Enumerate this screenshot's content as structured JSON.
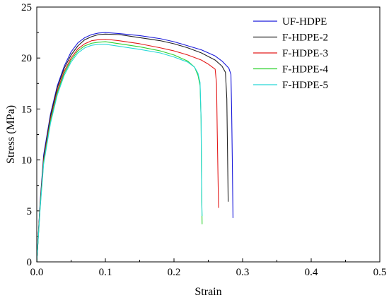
{
  "chart_data": {
    "type": "line",
    "title": "",
    "xlabel": "Strain",
    "ylabel": "Stress (MPa)",
    "xlim": [
      0,
      0.5
    ],
    "ylim": [
      0,
      25
    ],
    "xticks": [
      0.0,
      0.1,
      0.2,
      0.3,
      0.4,
      0.5
    ],
    "xtick_labels": [
      "0.0",
      "0.1",
      "0.2",
      "0.3",
      "0.4",
      "0.5"
    ],
    "yticks": [
      0,
      5,
      10,
      15,
      20,
      25
    ],
    "ytick_labels": [
      "0",
      "5",
      "10",
      "15",
      "20",
      "25"
    ],
    "grid": false,
    "legend_position": "top-right",
    "series": [
      {
        "name": "UF-HDPE",
        "color": "#1a1adb",
        "points": [
          [
            0,
            0
          ],
          [
            0.005,
            6
          ],
          [
            0.01,
            10.5
          ],
          [
            0.02,
            14.5
          ],
          [
            0.03,
            17.3
          ],
          [
            0.04,
            19.2
          ],
          [
            0.05,
            20.6
          ],
          [
            0.06,
            21.5
          ],
          [
            0.07,
            22.0
          ],
          [
            0.08,
            22.3
          ],
          [
            0.09,
            22.45
          ],
          [
            0.1,
            22.5
          ],
          [
            0.12,
            22.4
          ],
          [
            0.15,
            22.2
          ],
          [
            0.18,
            21.9
          ],
          [
            0.2,
            21.6
          ],
          [
            0.22,
            21.2
          ],
          [
            0.24,
            20.8
          ],
          [
            0.26,
            20.2
          ],
          [
            0.27,
            19.7
          ],
          [
            0.28,
            19.0
          ],
          [
            0.283,
            18.4
          ],
          [
            0.284,
            15
          ],
          [
            0.285,
            10
          ],
          [
            0.286,
            4.3
          ]
        ]
      },
      {
        "name": "F-HDPE-2",
        "color": "#222222",
        "points": [
          [
            0,
            0
          ],
          [
            0.005,
            5.8
          ],
          [
            0.01,
            10.2
          ],
          [
            0.02,
            14.3
          ],
          [
            0.03,
            17.1
          ],
          [
            0.04,
            19.0
          ],
          [
            0.05,
            20.3
          ],
          [
            0.06,
            21.2
          ],
          [
            0.07,
            21.8
          ],
          [
            0.08,
            22.1
          ],
          [
            0.09,
            22.3
          ],
          [
            0.1,
            22.35
          ],
          [
            0.12,
            22.3
          ],
          [
            0.15,
            22.0
          ],
          [
            0.18,
            21.7
          ],
          [
            0.2,
            21.4
          ],
          [
            0.22,
            21.0
          ],
          [
            0.24,
            20.5
          ],
          [
            0.26,
            19.8
          ],
          [
            0.27,
            19.2
          ],
          [
            0.275,
            18.6
          ],
          [
            0.277,
            16
          ],
          [
            0.278,
            11
          ],
          [
            0.279,
            5.9
          ]
        ]
      },
      {
        "name": "F-HDPE-3",
        "color": "#e31a1a",
        "points": [
          [
            0,
            0
          ],
          [
            0.005,
            5.6
          ],
          [
            0.01,
            10.0
          ],
          [
            0.02,
            14.0
          ],
          [
            0.03,
            16.8
          ],
          [
            0.04,
            18.7
          ],
          [
            0.05,
            20.0
          ],
          [
            0.06,
            20.9
          ],
          [
            0.07,
            21.4
          ],
          [
            0.08,
            21.7
          ],
          [
            0.09,
            21.8
          ],
          [
            0.1,
            21.85
          ],
          [
            0.12,
            21.7
          ],
          [
            0.15,
            21.4
          ],
          [
            0.18,
            21.0
          ],
          [
            0.2,
            20.7
          ],
          [
            0.22,
            20.3
          ],
          [
            0.24,
            19.8
          ],
          [
            0.25,
            19.4
          ],
          [
            0.26,
            18.9
          ],
          [
            0.262,
            17.5
          ],
          [
            0.263,
            13
          ],
          [
            0.264,
            9
          ],
          [
            0.265,
            5.3
          ]
        ]
      },
      {
        "name": "F-HDPE-4",
        "color": "#2ed12e",
        "points": [
          [
            0,
            0
          ],
          [
            0.005,
            5.5
          ],
          [
            0.01,
            9.8
          ],
          [
            0.02,
            13.8
          ],
          [
            0.03,
            16.6
          ],
          [
            0.04,
            18.5
          ],
          [
            0.05,
            19.8
          ],
          [
            0.06,
            20.7
          ],
          [
            0.07,
            21.2
          ],
          [
            0.08,
            21.45
          ],
          [
            0.09,
            21.55
          ],
          [
            0.1,
            21.6
          ],
          [
            0.12,
            21.4
          ],
          [
            0.15,
            21.1
          ],
          [
            0.18,
            20.7
          ],
          [
            0.2,
            20.3
          ],
          [
            0.22,
            19.7
          ],
          [
            0.23,
            19.1
          ],
          [
            0.235,
            18.3
          ],
          [
            0.238,
            17.3
          ],
          [
            0.2395,
            14
          ],
          [
            0.24,
            10
          ],
          [
            0.2405,
            6
          ],
          [
            0.241,
            3.7
          ]
        ]
      },
      {
        "name": "F-HDPE-5",
        "color": "#27d8d8",
        "points": [
          [
            0,
            0
          ],
          [
            0.005,
            5.3
          ],
          [
            0.01,
            9.6
          ],
          [
            0.02,
            13.6
          ],
          [
            0.03,
            16.4
          ],
          [
            0.04,
            18.3
          ],
          [
            0.05,
            19.6
          ],
          [
            0.06,
            20.5
          ],
          [
            0.07,
            21.0
          ],
          [
            0.08,
            21.25
          ],
          [
            0.09,
            21.35
          ],
          [
            0.1,
            21.35
          ],
          [
            0.12,
            21.15
          ],
          [
            0.15,
            20.85
          ],
          [
            0.18,
            20.5
          ],
          [
            0.2,
            20.1
          ],
          [
            0.22,
            19.6
          ],
          [
            0.23,
            19.1
          ],
          [
            0.235,
            18.5
          ],
          [
            0.238,
            17.6
          ],
          [
            0.2395,
            14
          ],
          [
            0.24,
            9
          ],
          [
            0.2405,
            6
          ],
          [
            0.241,
            4.5
          ]
        ]
      }
    ]
  }
}
